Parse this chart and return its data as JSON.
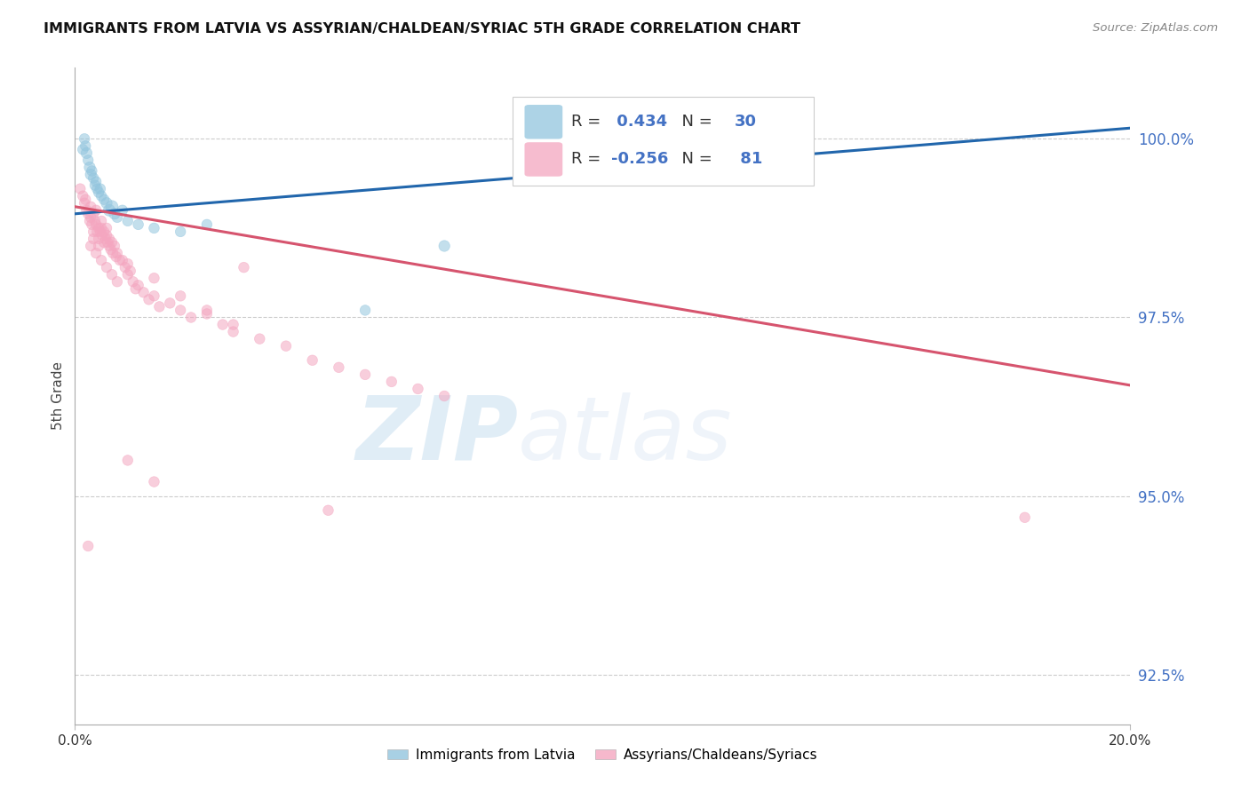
{
  "title": "IMMIGRANTS FROM LATVIA VS ASSYRIAN/CHALDEAN/SYRIAC 5TH GRADE CORRELATION CHART",
  "source": "Source: ZipAtlas.com",
  "ylabel": "5th Grade",
  "right_yticks": [
    92.5,
    95.0,
    97.5,
    100.0
  ],
  "right_ytick_labels": [
    "92.5%",
    "95.0%",
    "97.5%",
    "100.0%"
  ],
  "xmin": 0.0,
  "xmax": 20.0,
  "ymin": 91.8,
  "ymax": 101.0,
  "blue_line_x0": 0.0,
  "blue_line_y0": 98.95,
  "blue_line_x1": 20.0,
  "blue_line_y1": 100.15,
  "pink_line_x0": 0.0,
  "pink_line_y0": 99.05,
  "pink_line_x1": 20.0,
  "pink_line_y1": 96.55,
  "blue_R": "0.434",
  "blue_N": "30",
  "pink_R": "-0.256",
  "pink_N": "81",
  "blue_color": "#92c5de",
  "pink_color": "#f4a6c0",
  "blue_line_color": "#2166ac",
  "pink_line_color": "#d6546e",
  "axis_label_color": "#4472c4",
  "legend_label_blue": "Immigrants from Latvia",
  "legend_label_pink": "Assyrians/Chaldeans/Syriacs",
  "watermark_zip": "ZIP",
  "watermark_atlas": "atlas",
  "blue_x": [
    0.15,
    0.18,
    0.2,
    0.22,
    0.25,
    0.28,
    0.3,
    0.32,
    0.35,
    0.38,
    0.4,
    0.42,
    0.45,
    0.48,
    0.5,
    0.55,
    0.6,
    0.65,
    0.7,
    0.75,
    0.8,
    0.9,
    1.0,
    1.2,
    1.5,
    2.0,
    2.5,
    5.5,
    7.0,
    12.5
  ],
  "blue_y": [
    99.85,
    100.0,
    99.9,
    99.8,
    99.7,
    99.6,
    99.5,
    99.55,
    99.45,
    99.35,
    99.4,
    99.3,
    99.25,
    99.3,
    99.2,
    99.15,
    99.1,
    99.0,
    99.05,
    98.95,
    98.9,
    99.0,
    98.85,
    98.8,
    98.75,
    98.7,
    98.8,
    97.6,
    98.5,
    100.05
  ],
  "blue_s": [
    70,
    70,
    70,
    80,
    70,
    80,
    80,
    70,
    70,
    70,
    70,
    70,
    70,
    70,
    70,
    70,
    80,
    90,
    100,
    80,
    70,
    70,
    70,
    70,
    70,
    70,
    70,
    70,
    80,
    280
  ],
  "pink_x": [
    0.1,
    0.15,
    0.18,
    0.2,
    0.22,
    0.25,
    0.28,
    0.3,
    0.3,
    0.32,
    0.35,
    0.35,
    0.38,
    0.4,
    0.4,
    0.42,
    0.45,
    0.45,
    0.48,
    0.5,
    0.5,
    0.52,
    0.55,
    0.55,
    0.58,
    0.6,
    0.6,
    0.62,
    0.65,
    0.65,
    0.68,
    0.7,
    0.72,
    0.75,
    0.78,
    0.8,
    0.85,
    0.9,
    0.95,
    1.0,
    1.0,
    1.05,
    1.1,
    1.15,
    1.2,
    1.3,
    1.4,
    1.5,
    1.6,
    1.8,
    2.0,
    2.2,
    2.5,
    2.8,
    3.0,
    3.5,
    4.0,
    4.5,
    5.0,
    5.5,
    6.0,
    6.5,
    7.0,
    1.5,
    2.0,
    2.5,
    3.0,
    0.3,
    0.4,
    0.5,
    0.6,
    0.7,
    0.8,
    0.35,
    0.45,
    1.0,
    1.5,
    3.2,
    4.8,
    18.0,
    0.25
  ],
  "pink_y": [
    99.3,
    99.2,
    99.1,
    99.15,
    99.0,
    98.95,
    98.85,
    99.05,
    98.9,
    98.8,
    98.95,
    98.7,
    98.85,
    98.8,
    99.0,
    98.7,
    98.75,
    98.6,
    98.7,
    98.75,
    98.85,
    98.65,
    98.7,
    98.55,
    98.6,
    98.65,
    98.75,
    98.55,
    98.6,
    98.5,
    98.45,
    98.55,
    98.4,
    98.5,
    98.35,
    98.4,
    98.3,
    98.3,
    98.2,
    98.25,
    98.1,
    98.15,
    98.0,
    97.9,
    97.95,
    97.85,
    97.75,
    97.8,
    97.65,
    97.7,
    97.6,
    97.5,
    97.55,
    97.4,
    97.3,
    97.2,
    97.1,
    96.9,
    96.8,
    96.7,
    96.6,
    96.5,
    96.4,
    98.05,
    97.8,
    97.6,
    97.4,
    98.5,
    98.4,
    98.3,
    98.2,
    98.1,
    98.0,
    98.6,
    98.5,
    95.5,
    95.2,
    98.2,
    94.8,
    94.7,
    94.3
  ],
  "pink_s": [
    70,
    70,
    70,
    70,
    70,
    70,
    70,
    70,
    70,
    70,
    70,
    70,
    70,
    70,
    70,
    70,
    70,
    70,
    70,
    70,
    70,
    70,
    70,
    70,
    70,
    70,
    70,
    70,
    70,
    70,
    70,
    70,
    70,
    70,
    70,
    70,
    70,
    70,
    70,
    70,
    70,
    70,
    70,
    70,
    70,
    70,
    70,
    70,
    70,
    70,
    70,
    70,
    70,
    70,
    70,
    70,
    70,
    70,
    70,
    70,
    70,
    70,
    70,
    70,
    70,
    70,
    70,
    70,
    70,
    70,
    70,
    70,
    70,
    70,
    70,
    70,
    70,
    70,
    70,
    70,
    70
  ]
}
